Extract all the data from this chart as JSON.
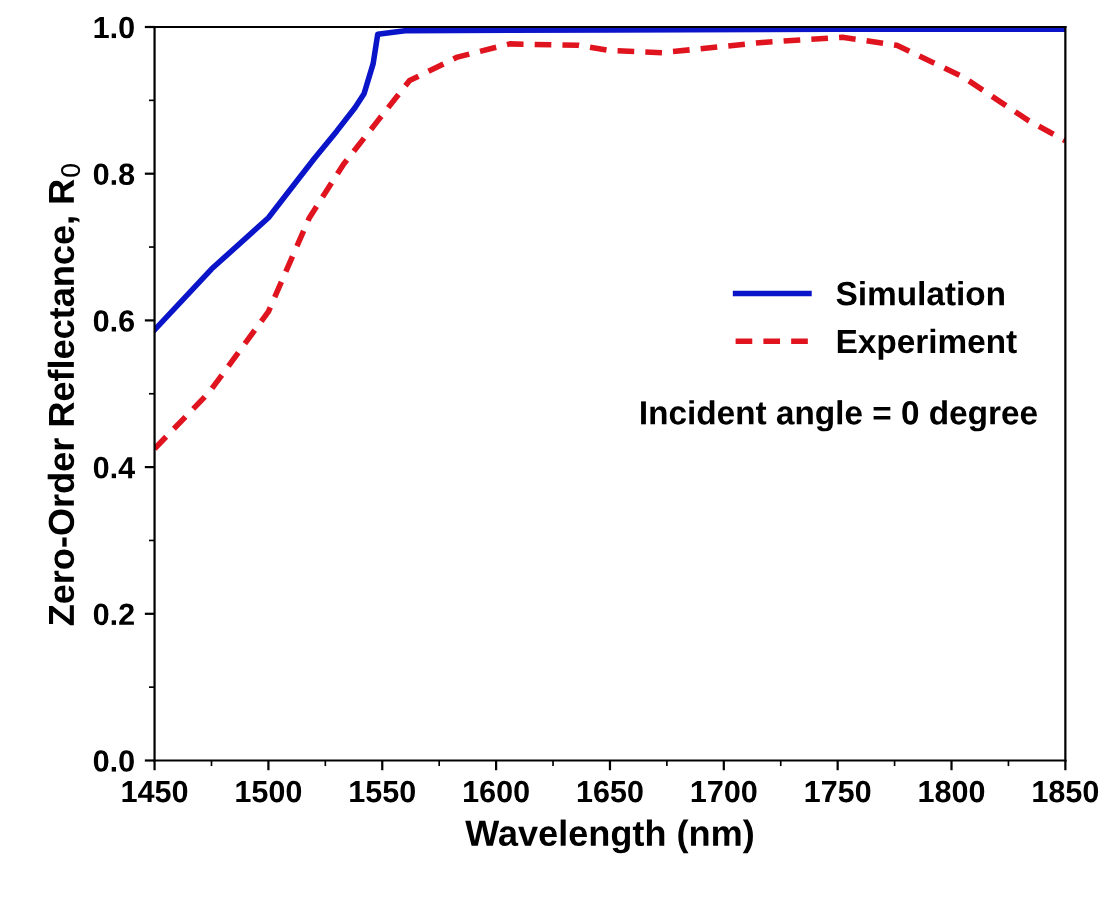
{
  "chart_data": {
    "type": "line",
    "xlabel": "Wavelength (nm)",
    "ylabel": "Zero-Order Reflectance, R$_{0}$",
    "xlim": [
      1450,
      1850
    ],
    "xticks": [
      1450,
      1500,
      1550,
      1600,
      1650,
      1700,
      1750,
      1800,
      1850
    ],
    "ylim": [
      0.0,
      1.0
    ],
    "yticks": [
      {
        "value": 0.0,
        "label": "0.0"
      },
      {
        "value": 0.2,
        "label": "0.2"
      },
      {
        "value": 0.4,
        "label": "0.4"
      },
      {
        "value": 0.6,
        "label": "0.6"
      },
      {
        "value": 0.8,
        "label": "0.8"
      },
      {
        "value": 1.0,
        "label": "1.0"
      }
    ],
    "grid": false,
    "legend": "right",
    "marker": "none",
    "annotations": [
      "Incident angle = 0 degree"
    ],
    "series": [
      {
        "name": "Simulation",
        "color": "#0a14c8",
        "line_style": "solid",
        "x": [
          1450,
          1475,
          1500,
          1509,
          1520,
          1530,
          1538,
          1542,
          1546,
          1548,
          1560,
          1650,
          1750,
          1850
        ],
        "values": [
          0.587,
          0.67,
          0.74,
          0.776,
          0.82,
          0.858,
          0.89,
          0.909,
          0.95,
          0.99,
          0.995,
          0.996,
          0.997,
          0.997
        ]
      },
      {
        "name": "Experiment",
        "color": "#e0141e",
        "line_style": "dashed",
        "x": [
          1450,
          1474,
          1500,
          1518,
          1533,
          1548,
          1562,
          1583,
          1606,
          1636,
          1650,
          1673,
          1717,
          1752,
          1776,
          1805,
          1834,
          1850
        ],
        "values": [
          0.425,
          0.502,
          0.612,
          0.74,
          0.813,
          0.872,
          0.927,
          0.959,
          0.977,
          0.975,
          0.968,
          0.965,
          0.979,
          0.986,
          0.975,
          0.932,
          0.872,
          0.845
        ]
      }
    ]
  }
}
